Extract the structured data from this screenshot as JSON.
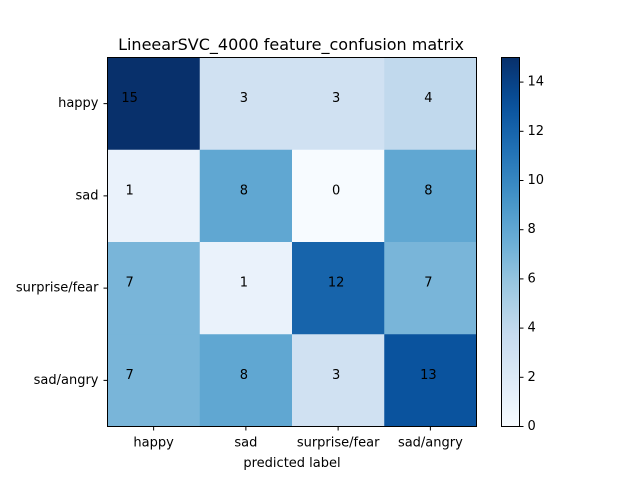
{
  "chart_data": {
    "type": "heatmap",
    "title": "LineearSVC_4000 feature_confusion matrix",
    "xlabel": "predicted label",
    "ylabel": "",
    "row_labels": [
      "happy",
      "sad",
      "surprise/fear",
      "sad/angry"
    ],
    "col_labels": [
      "happy",
      "sad",
      "surprise/fear",
      "sad/angry"
    ],
    "values": [
      [
        15,
        3,
        3,
        4
      ],
      [
        1,
        8,
        0,
        8
      ],
      [
        7,
        1,
        12,
        7
      ],
      [
        7,
        8,
        3,
        13
      ]
    ],
    "colorbar": {
      "range": [
        0,
        15
      ],
      "ticks": [
        "0",
        "2",
        "4",
        "6",
        "8",
        "10",
        "12",
        "14"
      ]
    },
    "colormap": "Blues",
    "colors": {
      "low": "#f7fbff",
      "high": "#08306b"
    }
  }
}
